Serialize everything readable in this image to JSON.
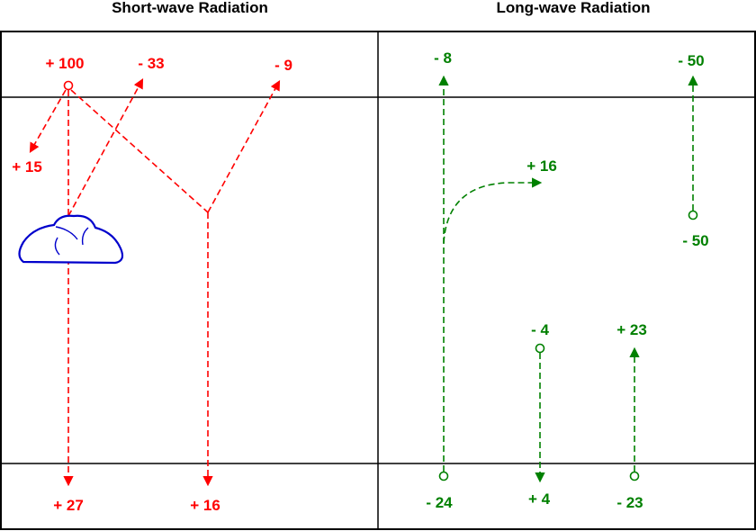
{
  "colors": {
    "shortwave": "#ff0000",
    "longwave": "#008000",
    "cloud": "#0000cc",
    "frame": "#000000"
  },
  "panels": {
    "shortwave": {
      "title": "Short-wave Radiation"
    },
    "longwave": {
      "title": "Long-wave Radiation"
    }
  },
  "shortwave_labels": {
    "incoming": "+ 100",
    "cloud_reflected": "- 33",
    "surface_reflected": "- 9",
    "atmosphere_absorbed": "+ 15",
    "surface_direct": "+ 27",
    "surface_diffuse": "+ 16"
  },
  "longwave_labels": {
    "surface_escape": "- 8",
    "latent_sensible": "+ 16",
    "atmosphere_space": "- 50",
    "atmosphere_emission": "- 50",
    "convection_loss": "- 4",
    "convection_gain": "+ 23",
    "surface_emission": "- 24",
    "surface_gain": "+ 4",
    "surface_loss": "- 23"
  }
}
